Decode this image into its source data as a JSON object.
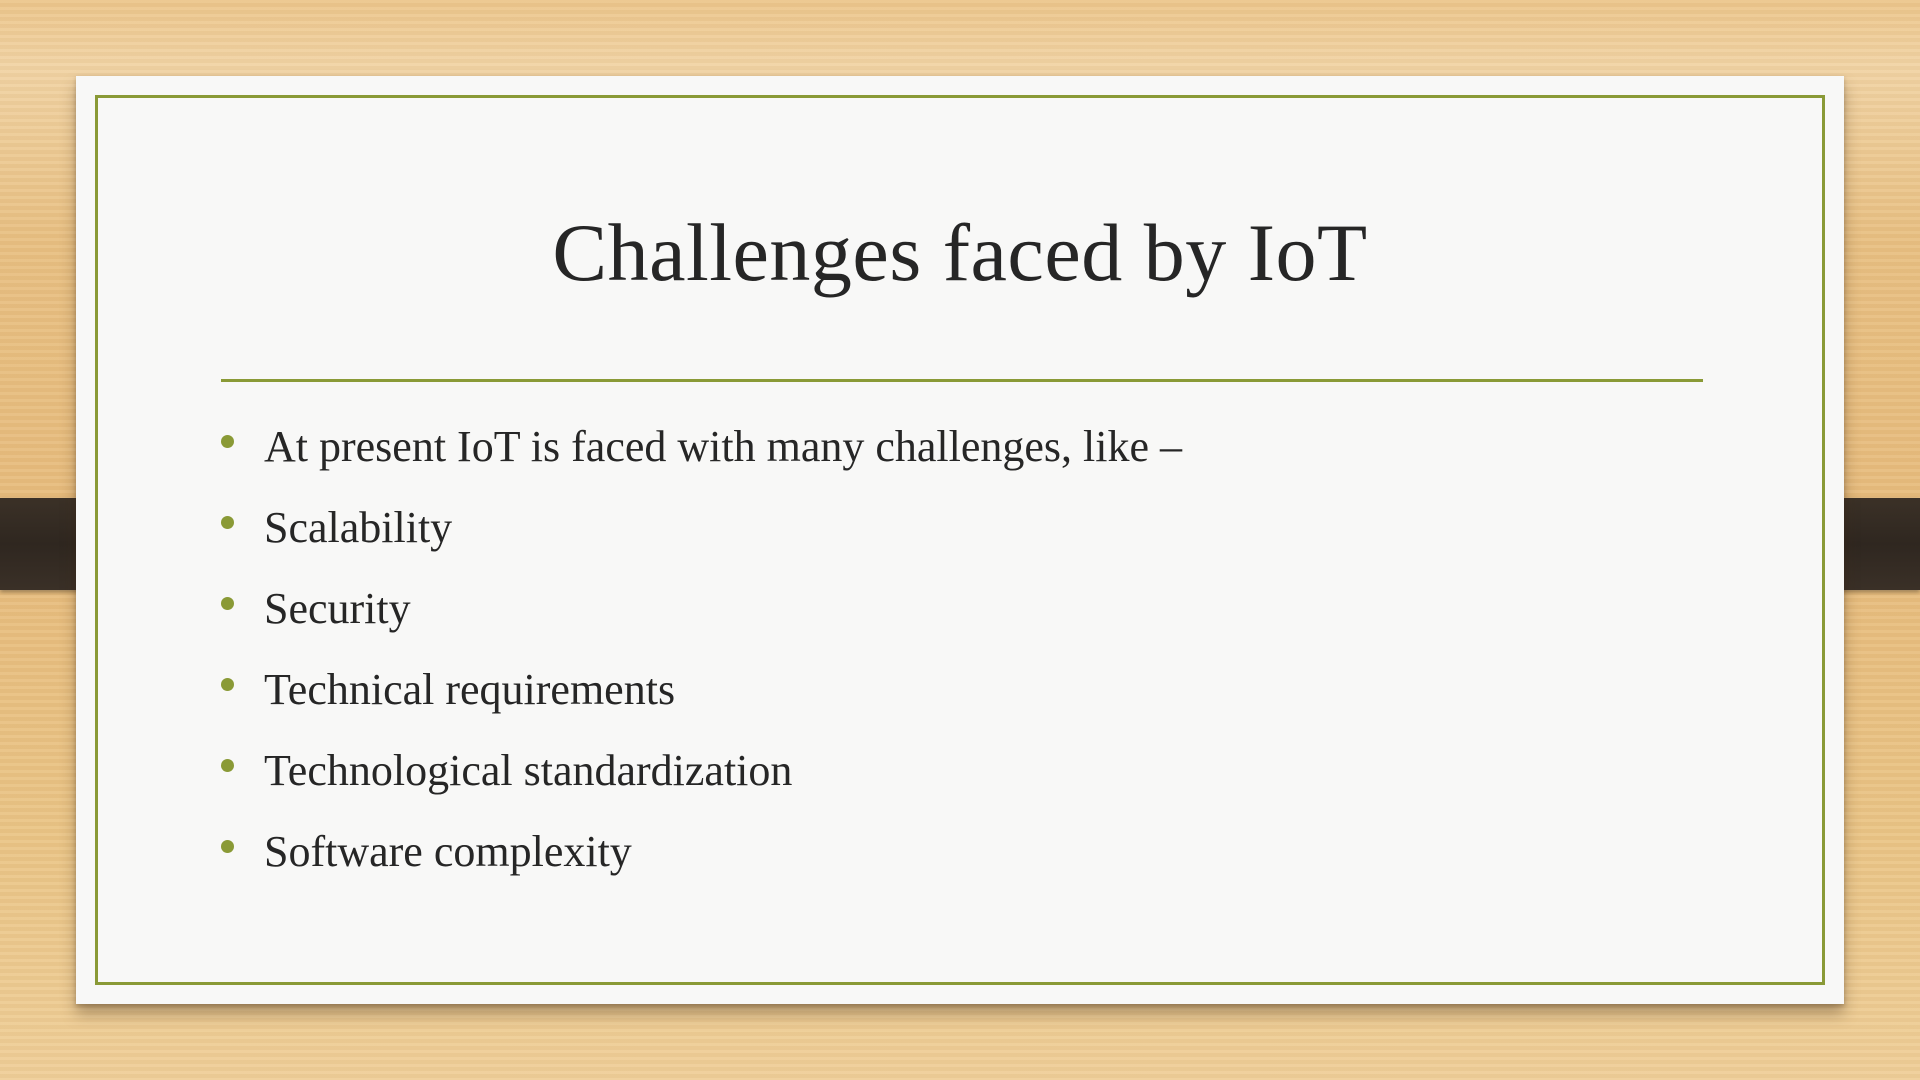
{
  "slide": {
    "title": "Challenges faced by IoT",
    "bullets": [
      "At present IoT is faced with many challenges, like –",
      "Scalability",
      "Security",
      "Technical requirements",
      "Technological standardization",
      "Software complexity"
    ]
  },
  "colors": {
    "accent": "#8a9a36",
    "text": "#262626",
    "paper": "#f8f8f7",
    "strap": "#2f2720"
  }
}
